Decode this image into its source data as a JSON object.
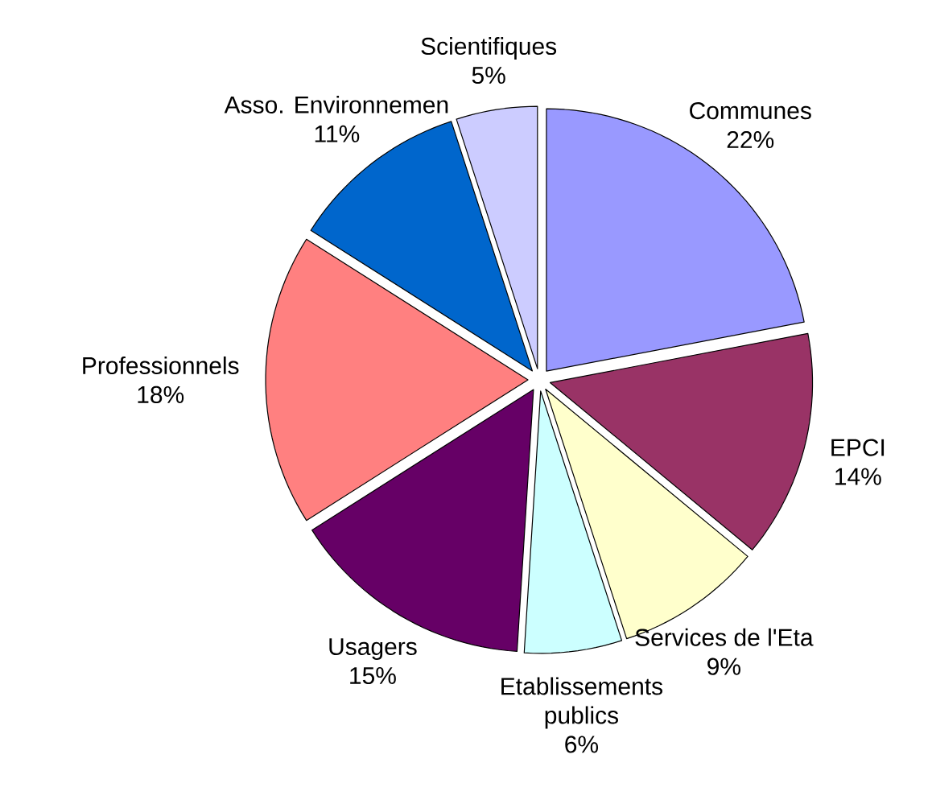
{
  "chart_data": {
    "type": "pie",
    "categories": [
      "Communes",
      "EPCI",
      "Services de l'Eta",
      "Etablissements publics",
      "Usagers",
      "Professionnels",
      "Asso. Environnemen",
      "Scientifiques"
    ],
    "values": [
      22,
      14,
      9,
      6,
      15,
      18,
      11,
      5
    ],
    "value_labels": [
      "22%",
      "14%",
      "9%",
      "6%",
      "15%",
      "18%",
      "11%",
      "5%"
    ],
    "colors": [
      "#9999ff",
      "#993366",
      "#ffffcc",
      "#ccffff",
      "#660066",
      "#ff8080",
      "#0066cc",
      "#ccccff"
    ]
  }
}
